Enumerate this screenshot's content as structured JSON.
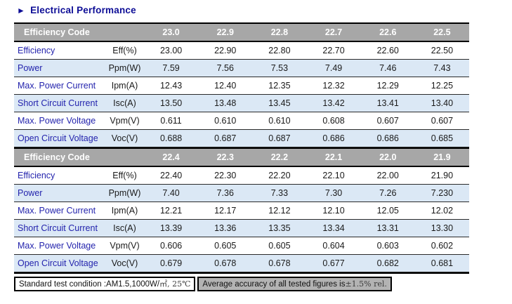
{
  "title": {
    "arrow": "►",
    "text": "Electrical Performance"
  },
  "table": {
    "header_label": "Efficiency Code",
    "sections": [
      {
        "codes": [
          "23.0",
          "22.9",
          "22.8",
          "22.7",
          "22.6",
          "22.5"
        ],
        "rows": [
          {
            "label": "Efficiency",
            "unit": "Eff(%)",
            "values": [
              "23.00",
              "22.90",
              "22.80",
              "22.70",
              "22.60",
              "22.50"
            ]
          },
          {
            "label": "Power",
            "unit": "Ppm(W)",
            "values": [
              "7.59",
              "7.56",
              "7.53",
              "7.49",
              "7.46",
              "7.43"
            ]
          },
          {
            "label": "Max. Power Current",
            "unit": "Ipm(A)",
            "values": [
              "12.43",
              "12.40",
              "12.35",
              "12.32",
              "12.29",
              "12.25"
            ]
          },
          {
            "label": "Short Circuit Current",
            "unit": "Isc(A)",
            "values": [
              "13.50",
              "13.48",
              "13.45",
              "13.42",
              "13.41",
              "13.40"
            ]
          },
          {
            "label": "Max. Power Voltage",
            "unit": "Vpm(V)",
            "values": [
              "0.611",
              "0.610",
              "0.610",
              "0.608",
              "0.607",
              "0.607"
            ]
          },
          {
            "label": "Open Circuit Voltage",
            "unit": "Voc(V)",
            "values": [
              "0.688",
              "0.687",
              "0.687",
              "0.686",
              "0.686",
              "0.685"
            ]
          }
        ]
      },
      {
        "codes": [
          "22.4",
          "22.3",
          "22.2",
          "22.1",
          "22.0",
          "21.9"
        ],
        "rows": [
          {
            "label": "Efficiency",
            "unit": "Eff(%)",
            "values": [
              "22.40",
              "22.30",
              "22.20",
              "22.10",
              "22.00",
              "21.90"
            ]
          },
          {
            "label": "Power",
            "unit": "Ppm(W)",
            "values": [
              "7.40",
              "7.36",
              "7.33",
              "7.30",
              "7.26",
              "7.230"
            ]
          },
          {
            "label": "Max. Power Current",
            "unit": "Ipm(A)",
            "values": [
              "12.21",
              "12.17",
              "12.12",
              "12.10",
              "12.05",
              "12.02"
            ]
          },
          {
            "label": "Short Circuit Current",
            "unit": "Isc(A)",
            "values": [
              "13.39",
              "13.36",
              "13.35",
              "13.34",
              "13.31",
              "13.30"
            ]
          },
          {
            "label": "Max. Power Voltage",
            "unit": "Vpm(V)",
            "values": [
              "0.606",
              "0.605",
              "0.605",
              "0.604",
              "0.603",
              "0.602"
            ]
          },
          {
            "label": "Open Circuit Voltage",
            "unit": "Voc(V)",
            "values": [
              "0.679",
              "0.678",
              "0.678",
              "0.677",
              "0.682",
              "0.681"
            ]
          }
        ]
      }
    ]
  },
  "footer": {
    "left_prefix": "Standard test condition :AM1.5,1000W/",
    "left_suffix": "㎡, 25℃",
    "right_prefix": "Average accuracy of all tested figures is",
    "right_suffix": "±1.5% rel."
  },
  "colors": {
    "title_navy": "#0d0d96",
    "header_bg": "#a7a7a7",
    "header_text": "#ffffff",
    "row_alt_blue": "#dbe8f5",
    "row_label_blue": "#2323ad",
    "value_text": "#1a1a1a",
    "footer_gray_bg": "#b3b3b3",
    "border_black": "#000000"
  }
}
